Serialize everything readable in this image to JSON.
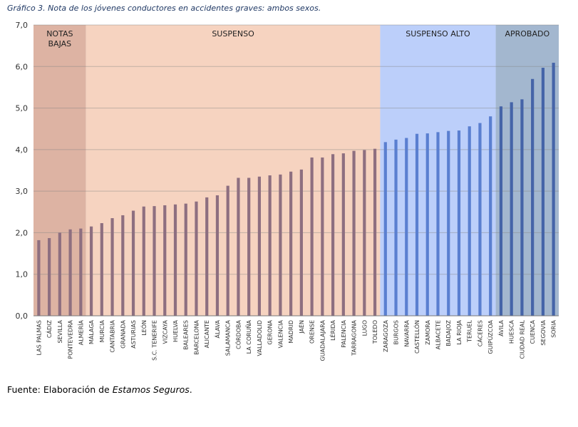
{
  "title": "Gráfico 3. Nota de los jóvenes conductores en accidentes graves: ambos sexos.",
  "source": {
    "prefix": "Fuente: Elaboración de ",
    "emphasis": "Estamos Seguros",
    "suffix": "."
  },
  "chart_data": {
    "type": "bar",
    "title": "Gráfico 3. Nota de los jóvenes conductores en accidentes graves: ambos sexos.",
    "xlabel": "",
    "ylabel": "",
    "ylim": [
      0,
      7
    ],
    "yticks": [
      "0,0",
      "1,0",
      "2,0",
      "3,0",
      "4,0",
      "5,0",
      "6,0",
      "7,0"
    ],
    "grid": true,
    "categories": [
      "LAS PALMAS",
      "CÁDIZ",
      "SEVILLA",
      "PONTEVEDRA",
      "ALMERÍA",
      "MÁLAGA",
      "MURCIA",
      "CANTABRIA",
      "GRANADA",
      "ASTURIAS",
      "LEÓN",
      "S.C. TENERIFE",
      "VIZCAYA",
      "HUELVA",
      "BALEARES",
      "BARCELONA",
      "ALICANTE",
      "ÁLAVA",
      "SALAMANCA",
      "CÓRDOBA",
      "LA CORUÑA",
      "VALLADOLID",
      "GERONA",
      "VALENCIA",
      "MADRID",
      "JAÉN",
      "ORENSE",
      "GUADALAJARA",
      "LÉRIDA",
      "PALENCIA",
      "TARRAGONA",
      "LUGO",
      "TOLEDO",
      "ZARAGOZA",
      "BURGOS",
      "NAVARRA",
      "CASTELLÓN",
      "ZAMORA",
      "ALBACETE",
      "BADAJOZ",
      "LA RIOJA",
      "TERUEL",
      "CÁCERES",
      "GUIPÚZCOA",
      "ÁVILA",
      "HUESCA",
      "CIUDAD REAL",
      "CUENCA",
      "SEGOVIA",
      "SORIA"
    ],
    "values": [
      1.82,
      1.87,
      2.0,
      2.08,
      2.1,
      2.15,
      2.23,
      2.35,
      2.42,
      2.53,
      2.63,
      2.64,
      2.66,
      2.68,
      2.7,
      2.75,
      2.85,
      2.9,
      3.13,
      3.32,
      3.32,
      3.35,
      3.38,
      3.4,
      3.47,
      3.52,
      3.81,
      3.81,
      3.89,
      3.91,
      3.97,
      3.99,
      4.02,
      4.18,
      4.24,
      4.28,
      4.38,
      4.39,
      4.42,
      4.45,
      4.46,
      4.56,
      4.64,
      4.8,
      5.04,
      5.14,
      5.21,
      5.7,
      5.97,
      6.09
    ],
    "zones": [
      {
        "label": "NOTAS BAJAS",
        "label_lines": [
          "NOTAS",
          "BAJAS"
        ],
        "start": 0,
        "end": 4,
        "bg": "#ddb3a3",
        "bar": "#8e6f80"
      },
      {
        "label": "SUSPENSO",
        "label_lines": [
          "SUSPENSO"
        ],
        "start": 5,
        "end": 32,
        "bg": "#f6d3c0",
        "bar": "#8e6f80"
      },
      {
        "label": "SUSPENSO ALTO",
        "label_lines": [
          "SUSPENSO ALTO"
        ],
        "start": 33,
        "end": 43,
        "bg": "#bccffa",
        "bar": "#5a7fd0"
      },
      {
        "label": "APROBADO",
        "label_lines": [
          "APROBADO"
        ],
        "start": 44,
        "end": 49,
        "bg": "#a3b7cf",
        "bar": "#4564a8"
      }
    ]
  }
}
